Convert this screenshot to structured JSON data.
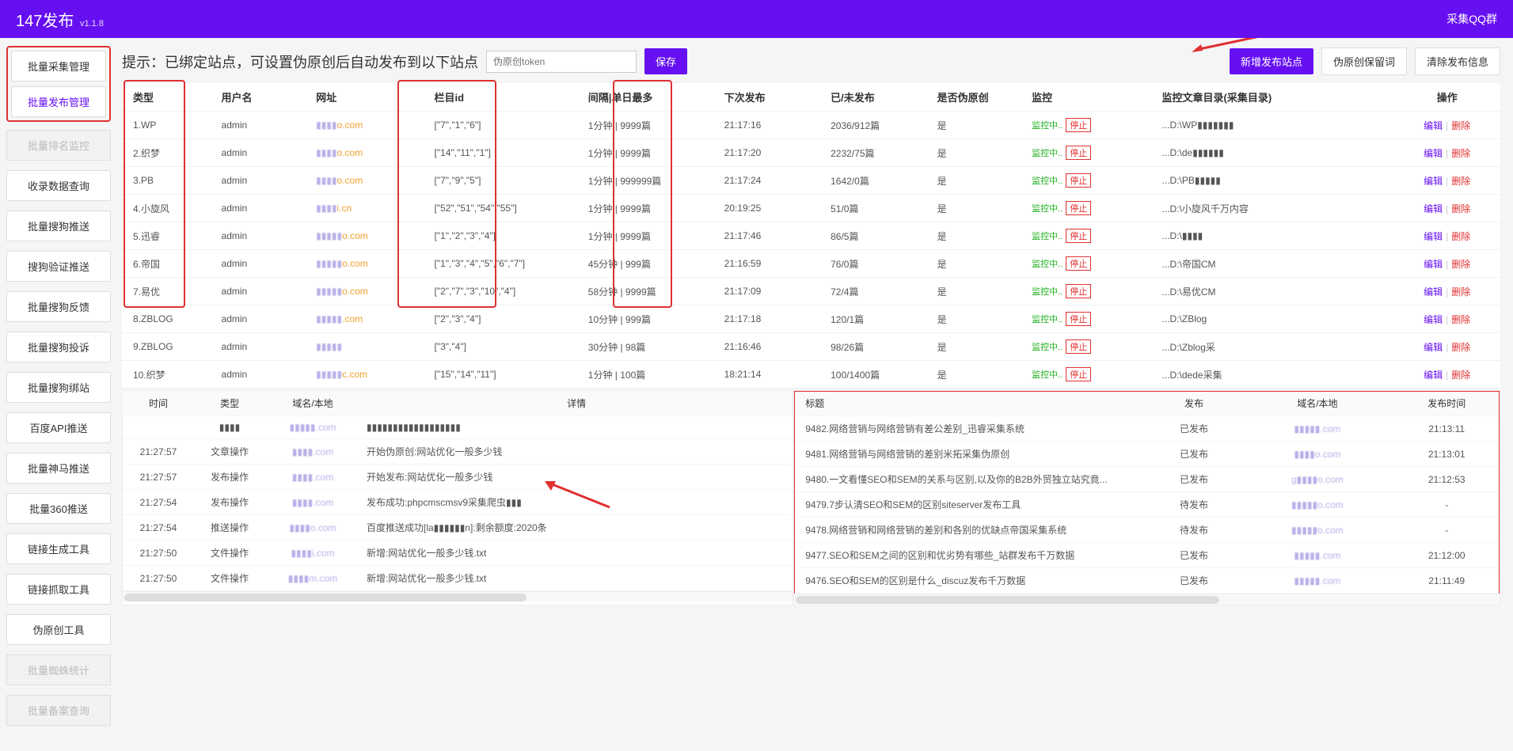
{
  "header": {
    "title": "147发布",
    "version": "v1.1.8",
    "right_link": "采集QQ群"
  },
  "sidebar": {
    "boxed": [
      {
        "label": "批量采集管理",
        "active": false
      },
      {
        "label": "批量发布管理",
        "active": true
      }
    ],
    "items": [
      {
        "label": "批量排名监控",
        "disabled": true
      },
      {
        "label": "收录数据查询",
        "disabled": false
      },
      {
        "label": "批量搜狗推送",
        "disabled": false
      },
      {
        "label": "搜狗验证推送",
        "disabled": false
      },
      {
        "label": "批量搜狗反馈",
        "disabled": false
      },
      {
        "label": "批量搜狗投诉",
        "disabled": false
      },
      {
        "label": "批量搜狗绑站",
        "disabled": false
      },
      {
        "label": "百度API推送",
        "disabled": false
      },
      {
        "label": "批量神马推送",
        "disabled": false
      },
      {
        "label": "批量360推送",
        "disabled": false
      },
      {
        "label": "链接生成工具",
        "disabled": false
      },
      {
        "label": "链接抓取工具",
        "disabled": false
      },
      {
        "label": "伪原创工具",
        "disabled": false
      },
      {
        "label": "批量蜘蛛统计",
        "disabled": true
      },
      {
        "label": "批量备案查询",
        "disabled": true
      }
    ]
  },
  "topbar": {
    "hint": "提示：已绑定站点，可设置伪原创后自动发布到以下站点",
    "token_placeholder": "伪原创token",
    "save": "保存",
    "add_site": "新增发布站点",
    "keep_word": "伪原创保留词",
    "clear_info": "清除发布信息"
  },
  "table": {
    "headers": {
      "type": "类型",
      "user": "用户名",
      "url": "网址",
      "colid": "栏目id",
      "interval": "间隔|单日最多",
      "next": "下次发布",
      "count": "已/未发布",
      "pseudo": "是否伪原创",
      "monitor": "监控",
      "dir": "监控文章目录(采集目录)",
      "op": "操作"
    },
    "op_edit": "编辑",
    "op_del": "删除",
    "monitor_running": "监控中..",
    "monitor_stop": "停止",
    "pseudo_yes": "是",
    "rows": [
      {
        "type": "1.WP",
        "user": "admin",
        "url_pre": "▮▮▮▮",
        "url_suf": "o.com",
        "colid": "[\"7\",\"1\",\"6\"]",
        "interval": "1分钟 | 9999篇",
        "next": "21:17:16",
        "count": "2036/912篇",
        "dir": "...D:\\WP▮▮▮▮▮▮▮"
      },
      {
        "type": "2.织梦",
        "user": "admin",
        "url_pre": "▮▮▮▮",
        "url_suf": "o.com",
        "colid": "[\"14\",\"11\",\"1\"]",
        "interval": "1分钟 | 9999篇",
        "next": "21:17:20",
        "count": "2232/75篇",
        "dir": "...D:\\de▮▮▮▮▮▮"
      },
      {
        "type": "3.PB",
        "user": "admin",
        "url_pre": "▮▮▮▮",
        "url_suf": "o.com",
        "colid": "[\"7\",\"9\",\"5\"]",
        "interval": "1分钟 | 999999篇",
        "next": "21:17:24",
        "count": "1642/0篇",
        "dir": "...D:\\PB▮▮▮▮▮"
      },
      {
        "type": "4.小旋风",
        "user": "admin",
        "url_pre": "▮▮▮▮",
        "url_suf": "i.cn",
        "colid": "[\"52\",\"51\",\"54\",\"55\"]",
        "interval": "1分钟 | 9999篇",
        "next": "20:19:25",
        "count": "51/0篇",
        "dir": "...D:\\小旋风千万内容"
      },
      {
        "type": "5.迅睿",
        "user": "admin",
        "url_pre": "▮▮▮▮▮",
        "url_suf": "o.com",
        "colid": "[\"1\",\"2\",\"3\",\"4\"]",
        "interval": "1分钟 | 9999篇",
        "next": "21:17:46",
        "count": "86/5篇",
        "dir": "...D:\\▮▮▮▮"
      },
      {
        "type": "6.帝国",
        "user": "admin",
        "url_pre": "▮▮▮▮▮",
        "url_suf": "o.com",
        "colid": "[\"1\",\"3\",\"4\",\"5\",\"6\",\"7\"]",
        "interval": "45分钟 | 999篇",
        "next": "21:16:59",
        "count": "76/0篇",
        "dir": "...D:\\帝国CM"
      },
      {
        "type": "7.易优",
        "user": "admin",
        "url_pre": "▮▮▮▮▮",
        "url_suf": "o.com",
        "colid": "[\"2\",\"7\",\"3\",\"10\",\"4\"]",
        "interval": "58分钟 | 9999篇",
        "next": "21:17:09",
        "count": "72/4篇",
        "dir": "...D:\\易优CM"
      },
      {
        "type": "8.ZBLOG",
        "user": "admin",
        "url_pre": "▮▮▮▮▮",
        "url_suf": ".com",
        "colid": "[\"2\",\"3\",\"4\"]",
        "interval": "10分钟 | 999篇",
        "next": "21:17:18",
        "count": "120/1篇",
        "dir": "...D:\\ZBlog"
      },
      {
        "type": "9.ZBLOG",
        "user": "admin",
        "url_pre": "▮▮▮▮▮",
        "url_suf": "",
        "colid": "[\"3\",\"4\"]",
        "interval": "30分钟 | 98篇",
        "next": "21:16:46",
        "count": "98/26篇",
        "dir": "...D:\\Zblog采"
      },
      {
        "type": "10.织梦",
        "user": "admin",
        "url_pre": "▮▮▮▮▮",
        "url_suf": "c.com",
        "colid": "[\"15\",\"14\",\"11\"]",
        "interval": "1分钟 | 100篇",
        "next": "18:21:14",
        "count": "100/1400篇",
        "dir": "...D:\\dede采集"
      }
    ]
  },
  "log_left": {
    "headers": {
      "time": "时间",
      "type": "类型",
      "domain": "域名/本地",
      "detail": "详情"
    },
    "rows": [
      {
        "time": "",
        "type": "▮▮▮▮",
        "domain": "▮▮▮▮▮.com",
        "detail": "▮▮▮▮▮▮▮▮▮▮▮▮▮▮▮▮▮▮"
      },
      {
        "time": "21:27:57",
        "type": "文章操作",
        "domain": "▮▮▮▮.com",
        "detail": "开始伪原创:网站优化一般多少钱"
      },
      {
        "time": "21:27:57",
        "type": "发布操作",
        "domain": "▮▮▮▮.com",
        "detail": "开始发布:网站优化一般多少钱"
      },
      {
        "time": "21:27:54",
        "type": "发布操作",
        "domain": "▮▮▮▮.com",
        "detail": "发布成功:phpcmscmsv9采集爬虫▮▮▮"
      },
      {
        "time": "21:27:54",
        "type": "推送操作",
        "domain": "▮▮▮▮o.com",
        "detail": "百度推送成功[la▮▮▮▮▮▮n]:剩余额度:2020条"
      },
      {
        "time": "21:27:50",
        "type": "文件操作",
        "domain": "▮▮▮▮i.com",
        "detail": "新增:网站优化一般多少钱.txt"
      },
      {
        "time": "21:27:50",
        "type": "文件操作",
        "domain": "▮▮▮▮m.com",
        "detail": "新增:网站优化一般多少钱.txt"
      }
    ]
  },
  "log_right": {
    "headers": {
      "title": "标题",
      "pub": "发布",
      "domain": "域名/本地",
      "time": "发布时间"
    },
    "rows": [
      {
        "title": "9482.网络营销与网络营销有差公差别_迅睿采集系统",
        "pub": "已发布",
        "domain": "▮▮▮▮▮.com",
        "time": "21:13:11"
      },
      {
        "title": "9481.网络营销与网络营销的差别米拓采集伪原创",
        "pub": "已发布",
        "domain": "▮▮▮▮o.com",
        "time": "21:13:01"
      },
      {
        "title": "9480.一文看懂SEO和SEM的关系与区别,以及你的B2B外贸独立站究竟...",
        "pub": "已发布",
        "domain": "g▮▮▮▮o.com",
        "time": "21:12:53"
      },
      {
        "title": "9479.7步认清SEO和SEM的区别siteserver发布工具",
        "pub": "待发布",
        "domain": "▮▮▮▮▮o.com",
        "time": "-"
      },
      {
        "title": "9478.网络营销和网络营销的差别和各别的优缺点帝国采集系统",
        "pub": "待发布",
        "domain": "▮▮▮▮▮o.com",
        "time": "-"
      },
      {
        "title": "9477.SEO和SEM之间的区别和优劣势有哪些_站群发布千万数据",
        "pub": "已发布",
        "domain": "▮▮▮▮▮.com",
        "time": "21:12:00"
      },
      {
        "title": "9476.SEO和SEM的区别是什么_discuz发布千万数据",
        "pub": "已发布",
        "domain": "▮▮▮▮▮.com",
        "time": "21:11:49"
      }
    ]
  }
}
